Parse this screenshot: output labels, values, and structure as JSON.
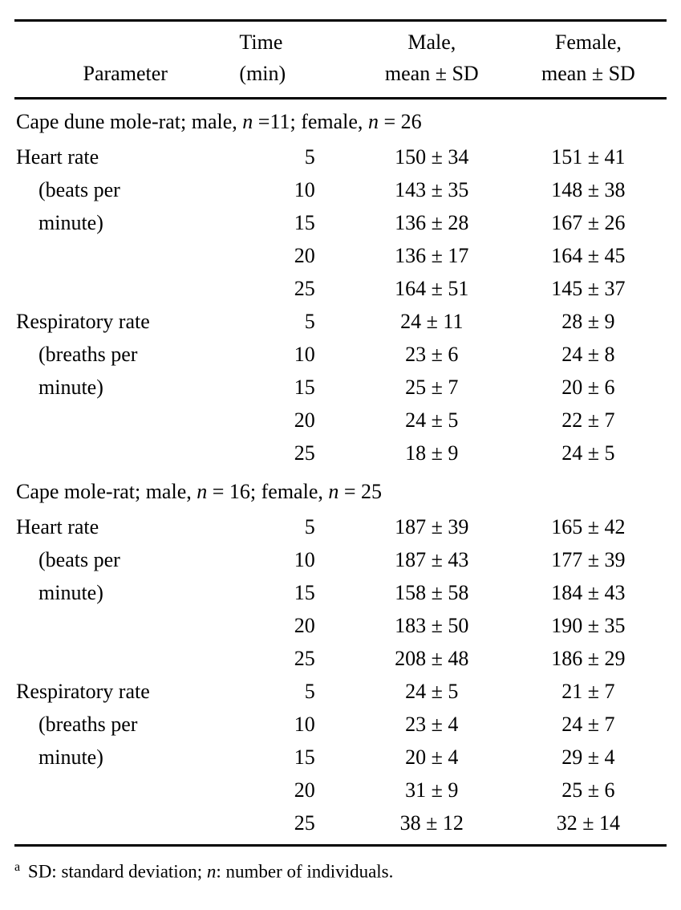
{
  "headers": {
    "parameter": "Parameter",
    "time_l1": "Time",
    "time_l2": "(min)",
    "male_l1": "Male,",
    "male_l2": "mean ± SD",
    "female_l1": "Female,",
    "female_l2": "mean ± SD"
  },
  "sections": [
    {
      "title_pre": "Cape dune mole-rat; male, ",
      "title_n1": "n",
      "title_mid1": " =11; female, ",
      "title_n2": "n",
      "title_post": " = 26",
      "groups": [
        {
          "param_l1": "Heart rate",
          "param_l2": "(beats per",
          "param_l3": "minute)",
          "rows": [
            {
              "time": "5",
              "male": "150 ± 34",
              "female": "151 ± 41"
            },
            {
              "time": "10",
              "male": "143 ± 35",
              "female": "148 ± 38"
            },
            {
              "time": "15",
              "male": "136 ± 28",
              "female": "167 ± 26"
            },
            {
              "time": "20",
              "male": "136 ± 17",
              "female": "164 ± 45"
            },
            {
              "time": "25",
              "male": "164 ± 51",
              "female": "145 ± 37"
            }
          ]
        },
        {
          "param_l1": "Respiratory rate",
          "param_l2": "(breaths per",
          "param_l3": "minute)",
          "rows": [
            {
              "time": "5",
              "male": "24 ± 11",
              "female": "28 ± 9"
            },
            {
              "time": "10",
              "male": "23 ± 6",
              "female": "24 ± 8"
            },
            {
              "time": "15",
              "male": "25 ± 7",
              "female": "20 ± 6"
            },
            {
              "time": "20",
              "male": "24 ± 5",
              "female": "22 ± 7"
            },
            {
              "time": "25",
              "male": "18 ± 9",
              "female": "24 ± 5"
            }
          ]
        }
      ]
    },
    {
      "title_pre": "Cape mole-rat; male, ",
      "title_n1": "n",
      "title_mid1": " = 16; female, ",
      "title_n2": "n",
      "title_post": " = 25",
      "groups": [
        {
          "param_l1": "Heart rate",
          "param_l2": "(beats per",
          "param_l3": "minute)",
          "rows": [
            {
              "time": "5",
              "male": "187 ± 39",
              "female": "165 ± 42"
            },
            {
              "time": "10",
              "male": "187 ± 43",
              "female": "177 ± 39"
            },
            {
              "time": "15",
              "male": "158 ± 58",
              "female": "184 ± 43"
            },
            {
              "time": "20",
              "male": "183 ± 50",
              "female": "190 ± 35"
            },
            {
              "time": "25",
              "male": "208 ± 48",
              "female": "186 ± 29"
            }
          ]
        },
        {
          "param_l1": "Respiratory rate",
          "param_l2": "(breaths per",
          "param_l3": "minute)",
          "rows": [
            {
              "time": "5",
              "male": "24 ± 5",
              "female": "21 ± 7"
            },
            {
              "time": "10",
              "male": "23 ± 4",
              "female": "24 ± 7"
            },
            {
              "time": "15",
              "male": "20 ± 4",
              "female": "29 ± 4"
            },
            {
              "time": "20",
              "male": "31 ± 9",
              "female": "25 ± 6"
            },
            {
              "time": "25",
              "male": "38 ± 12",
              "female": "32 ± 14"
            }
          ]
        }
      ]
    }
  ],
  "footnote": {
    "marker": "a",
    "text_pre": "SD: standard deviation; ",
    "n": "n",
    "text_post": ": number of individuals."
  },
  "style": {
    "background_color": "#ffffff",
    "text_color": "#000000",
    "rule_color": "#000000",
    "font_family": "Times New Roman",
    "body_font_size_pt": 20,
    "footnote_font_size_pt": 17
  }
}
